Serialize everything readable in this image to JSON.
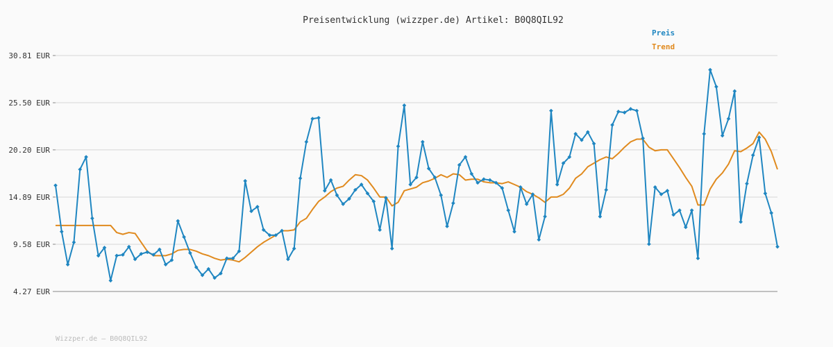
{
  "footer": "Wizzper.de – B0Q8QIL92",
  "colors": {
    "preis": "#1f86c1",
    "trend": "#e08a1e",
    "grid": "#e2e2e2",
    "axis": "#888888"
  },
  "chart_data": {
    "type": "line",
    "title": "Preisentwicklung (wizzper.de) Artikel: B0Q8QIL92",
    "xlabel": "",
    "ylabel": "",
    "ylim": [
      4.27,
      30.81
    ],
    "y_ticks": [
      30.81,
      25.5,
      20.2,
      14.89,
      9.58,
      4.27
    ],
    "y_tick_labels": [
      "30.81 EUR",
      "25.50 EUR",
      "20.20 EUR",
      "14.89 EUR",
      "9.58 EUR",
      "4.27 EUR"
    ],
    "grid": true,
    "legend_position": "top-right",
    "x": [
      1,
      2,
      3,
      4,
      5,
      6,
      7,
      8,
      9,
      10,
      11,
      12,
      13,
      14,
      15,
      16,
      17,
      18,
      19,
      20,
      21,
      22,
      23,
      24,
      25,
      26,
      27,
      28,
      29,
      30,
      31,
      32,
      33,
      34,
      35,
      36,
      37,
      38,
      39,
      40,
      41,
      42,
      43,
      44,
      45,
      46,
      47,
      48,
      49,
      50,
      51,
      52,
      53,
      54,
      55,
      56,
      57,
      58,
      59,
      60,
      61,
      62,
      63,
      64,
      65,
      66,
      67,
      68,
      69,
      70,
      71,
      72,
      73,
      74,
      75,
      76,
      77,
      78,
      79,
      80,
      81,
      82,
      83,
      84,
      85,
      86,
      87,
      88,
      89,
      90,
      91,
      92,
      93,
      94,
      95,
      96,
      97,
      98,
      99,
      100,
      101,
      102,
      103,
      104,
      105,
      106,
      107,
      108,
      109,
      110,
      111,
      112,
      113,
      114,
      115,
      116,
      117,
      118,
      119
    ],
    "series": [
      {
        "name": "Preis",
        "values": [
          16.2,
          11.0,
          7.3,
          9.8,
          18.0,
          19.4,
          12.5,
          8.3,
          9.2,
          5.5,
          8.3,
          8.4,
          9.3,
          7.9,
          8.5,
          8.7,
          8.4,
          9.0,
          7.3,
          7.8,
          12.2,
          10.4,
          8.6,
          7.0,
          6.1,
          6.8,
          5.8,
          6.3,
          8.0,
          8.0,
          8.8,
          16.7,
          13.3,
          13.8,
          11.2,
          10.6,
          10.6,
          11.1,
          7.9,
          9.1,
          17.0,
          21.1,
          23.7,
          23.8,
          15.6,
          16.8,
          15.1,
          14.1,
          14.7,
          15.7,
          16.3,
          15.3,
          14.4,
          11.2,
          14.8,
          9.1,
          20.6,
          25.2,
          16.3,
          17.1,
          21.1,
          18.1,
          17.1,
          15.1,
          11.6,
          14.2,
          18.5,
          19.4,
          17.5,
          16.5,
          16.9,
          16.8,
          16.5,
          15.9,
          13.4,
          11.0,
          16.0,
          14.1,
          15.2,
          10.1,
          12.7,
          24.6,
          16.3,
          18.7,
          19.4,
          22.0,
          21.3,
          22.2,
          20.9,
          12.7,
          15.7,
          23.0,
          24.5,
          24.4,
          24.8,
          24.6,
          21.5,
          9.6,
          16.0,
          15.2,
          15.6,
          12.9,
          13.4,
          11.5,
          13.4,
          8.0,
          22.0,
          29.2,
          27.3,
          21.8,
          23.7,
          26.8,
          12.1,
          16.4,
          19.6,
          21.6,
          15.3,
          13.1,
          9.3
        ]
      },
      {
        "name": "Trend",
        "values": [
          11.7,
          11.7,
          11.7,
          11.7,
          11.7,
          11.7,
          11.7,
          11.7,
          11.7,
          11.7,
          10.9,
          10.7,
          10.9,
          10.8,
          9.8,
          8.8,
          8.3,
          8.3,
          8.3,
          8.5,
          8.9,
          9.0,
          9.0,
          8.8,
          8.5,
          8.3,
          8.0,
          7.8,
          7.9,
          7.8,
          7.6,
          8.1,
          8.7,
          9.3,
          9.8,
          10.2,
          10.6,
          11.1,
          11.1,
          11.2,
          12.1,
          12.5,
          13.5,
          14.4,
          14.9,
          15.5,
          15.9,
          16.1,
          16.8,
          17.4,
          17.3,
          16.8,
          15.9,
          14.9,
          14.9,
          13.9,
          14.3,
          15.6,
          15.8,
          16.0,
          16.5,
          16.7,
          17.0,
          17.4,
          17.1,
          17.5,
          17.4,
          16.8,
          16.9,
          16.9,
          16.6,
          16.5,
          16.5,
          16.4,
          16.6,
          16.3,
          16.0,
          15.5,
          15.2,
          14.8,
          14.3,
          14.9,
          14.9,
          15.2,
          15.9,
          17.0,
          17.5,
          18.3,
          18.7,
          19.1,
          19.4,
          19.2,
          19.8,
          20.5,
          21.1,
          21.4,
          21.4,
          20.5,
          20.1,
          20.2,
          20.2,
          19.2,
          18.2,
          17.1,
          16.1,
          14.0,
          14.0,
          15.8,
          16.9,
          17.6,
          18.6,
          20.1,
          20.0,
          20.4,
          20.9,
          22.2,
          21.4,
          20.0,
          18.0
        ]
      }
    ]
  }
}
